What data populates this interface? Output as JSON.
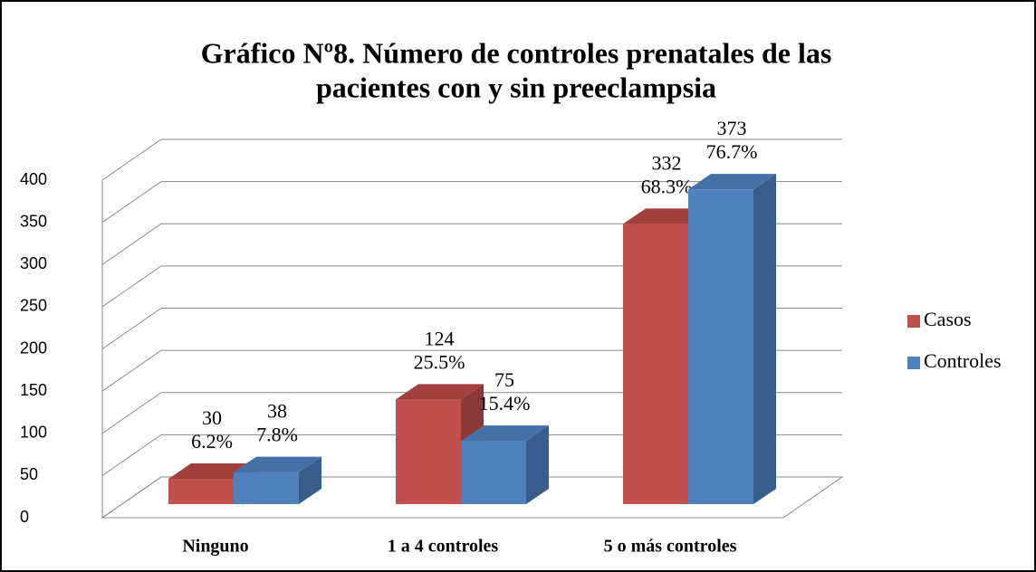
{
  "chart_data": {
    "type": "bar3d",
    "title": [
      "Gráfico Nº8. Número de controles prenatales de las",
      "pacientes con y sin preeclampsia"
    ],
    "categories": [
      "Ninguno",
      "1 a 4 controles",
      "5 o más controles"
    ],
    "series": [
      {
        "name": "Casos",
        "color": "#c0504d",
        "values": [
          30,
          124,
          332
        ],
        "percent_labels": [
          "6.2%",
          "25.5%",
          "68.3%"
        ]
      },
      {
        "name": "Controles",
        "color": "#4f81bd",
        "values": [
          38,
          75,
          373
        ],
        "percent_labels": [
          "7.8%",
          "15.4%",
          "76.7%"
        ]
      }
    ],
    "ylim": [
      0,
      400
    ],
    "yticks": [
      0,
      50,
      100,
      150,
      200,
      250,
      300,
      350,
      400
    ],
    "grid": true,
    "legend": "right"
  }
}
